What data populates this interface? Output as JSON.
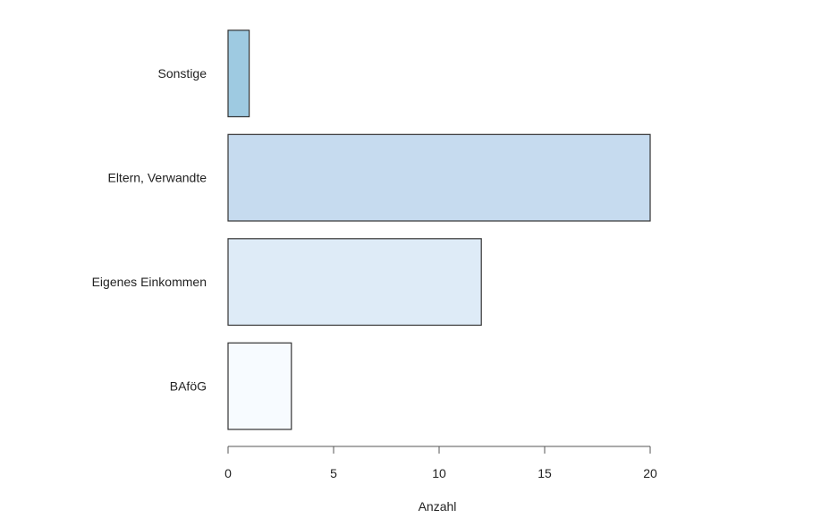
{
  "chart_data": {
    "type": "bar",
    "orientation": "horizontal",
    "categories": [
      "BAföG",
      "Eigenes Einkommen",
      "Eltern, Verwandte",
      "Sonstige"
    ],
    "values": [
      3,
      12,
      20,
      1
    ],
    "colors": [
      "#f7fbff",
      "#deebf7",
      "#c6dbef",
      "#9ecae1"
    ],
    "xlabel": "Anzahl",
    "ylabel": "",
    "title": "",
    "xlim": [
      0,
      20
    ],
    "x_ticks": [
      0,
      5,
      10,
      15,
      20
    ],
    "grid": false,
    "legend": "none"
  }
}
